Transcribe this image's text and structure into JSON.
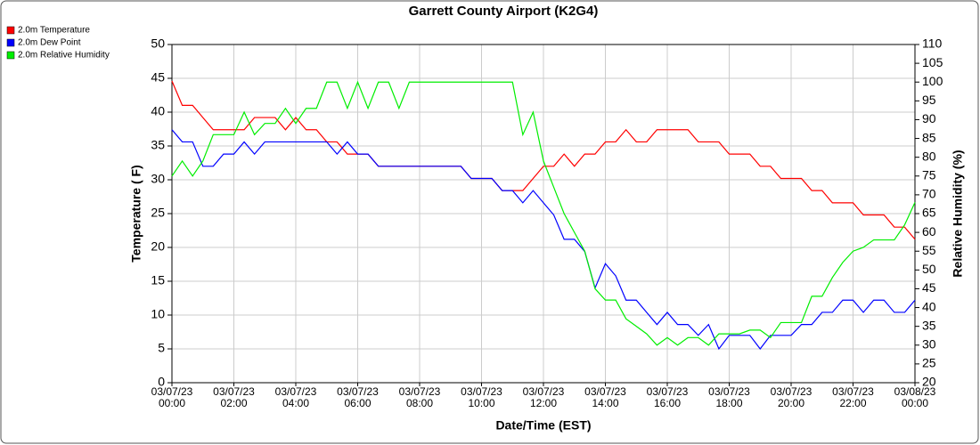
{
  "chart_data": {
    "type": "line",
    "title": "Garrett County Airport (K2G4)",
    "xlabel": "Date/Time (EST)",
    "ylabel": "Temperature ( F)",
    "y2label": "Relative Humidity (%)",
    "x": [
      "2023-03-07T00:00",
      "2023-03-07T00:20",
      "2023-03-07T00:40",
      "2023-03-07T01:00",
      "2023-03-07T01:20",
      "2023-03-07T01:40",
      "2023-03-07T02:00",
      "2023-03-07T02:20",
      "2023-03-07T02:40",
      "2023-03-07T03:00",
      "2023-03-07T03:20",
      "2023-03-07T03:40",
      "2023-03-07T04:00",
      "2023-03-07T04:20",
      "2023-03-07T04:40",
      "2023-03-07T05:00",
      "2023-03-07T05:20",
      "2023-03-07T05:40",
      "2023-03-07T06:00",
      "2023-03-07T06:20",
      "2023-03-07T06:40",
      "2023-03-07T07:00",
      "2023-03-07T07:20",
      "2023-03-07T07:40",
      "2023-03-07T08:00",
      "2023-03-07T08:20",
      "2023-03-07T08:40",
      "2023-03-07T09:00",
      "2023-03-07T09:20",
      "2023-03-07T09:40",
      "2023-03-07T10:00",
      "2023-03-07T10:20",
      "2023-03-07T10:40",
      "2023-03-07T11:00",
      "2023-03-07T11:20",
      "2023-03-07T11:40",
      "2023-03-07T12:00",
      "2023-03-07T12:20",
      "2023-03-07T12:40",
      "2023-03-07T13:00",
      "2023-03-07T13:20",
      "2023-03-07T13:40",
      "2023-03-07T14:00",
      "2023-03-07T14:20",
      "2023-03-07T14:40",
      "2023-03-07T15:00",
      "2023-03-07T15:20",
      "2023-03-07T15:40",
      "2023-03-07T16:00",
      "2023-03-07T16:20",
      "2023-03-07T16:40",
      "2023-03-07T17:00",
      "2023-03-07T17:20",
      "2023-03-07T17:40",
      "2023-03-07T18:00",
      "2023-03-07T18:20",
      "2023-03-07T18:40",
      "2023-03-07T19:00",
      "2023-03-07T19:20",
      "2023-03-07T19:40",
      "2023-03-07T20:00",
      "2023-03-07T20:20",
      "2023-03-07T20:40",
      "2023-03-07T21:00",
      "2023-03-07T21:20",
      "2023-03-07T21:40",
      "2023-03-07T22:00",
      "2023-03-07T22:20",
      "2023-03-07T22:40",
      "2023-03-07T23:00",
      "2023-03-07T23:20",
      "2023-03-07T23:40",
      "2023-03-08T00:00"
    ],
    "series": [
      {
        "name": "2.0m Temperature",
        "color": "#ff0000",
        "values": [
          44.6,
          41,
          41,
          39.2,
          37.4,
          37.4,
          37.4,
          37.4,
          39.2,
          39.2,
          39.2,
          37.4,
          39.2,
          37.4,
          37.4,
          35.6,
          35.6,
          33.8,
          33.8,
          33.8,
          32,
          32,
          32,
          32,
          32,
          32,
          32,
          32,
          32,
          30.2,
          30.2,
          30.2,
          28.4,
          28.4,
          28.4,
          30.2,
          32,
          32,
          33.8,
          32,
          33.8,
          33.8,
          35.6,
          35.6,
          37.4,
          35.6,
          35.6,
          37.4,
          37.4,
          37.4,
          37.4,
          35.6,
          35.6,
          35.6,
          33.8,
          33.8,
          33.8,
          32,
          32,
          30.2,
          30.2,
          30.2,
          28.4,
          28.4,
          26.6,
          26.6,
          26.6,
          24.8,
          24.8,
          24.8,
          23,
          23,
          21.2
        ]
      },
      {
        "name": "2.0m Dew Point",
        "color": "#0000ff",
        "values": [
          37.4,
          35.6,
          35.6,
          32,
          32,
          33.8,
          33.8,
          35.6,
          33.8,
          35.6,
          35.6,
          35.6,
          35.6,
          35.6,
          35.6,
          35.6,
          33.8,
          35.6,
          33.8,
          33.8,
          32,
          32,
          32,
          32,
          32,
          32,
          32,
          32,
          32,
          30.2,
          30.2,
          30.2,
          28.4,
          28.4,
          26.6,
          28.4,
          26.6,
          24.8,
          21.2,
          21.2,
          19.4,
          14,
          17.6,
          15.8,
          12.2,
          12.2,
          10.4,
          8.6,
          10.4,
          8.6,
          8.6,
          7,
          8.6,
          5,
          7,
          7,
          7,
          5,
          7,
          7,
          7,
          8.6,
          8.6,
          10.4,
          10.4,
          12.2,
          12.2,
          10.4,
          12.2,
          12.2,
          10.4,
          10.4,
          12.2
        ]
      },
      {
        "name": "2.0m Relative Humidity",
        "color": "#00ee00",
        "axis": "y2",
        "values": [
          75,
          79,
          75,
          79,
          86,
          86,
          86,
          92,
          86,
          89,
          89,
          93,
          89,
          93,
          93,
          100,
          100,
          93,
          100,
          93,
          100,
          100,
          93,
          100,
          100,
          100,
          100,
          100,
          100,
          100,
          100,
          100,
          100,
          100,
          86,
          92,
          79,
          72,
          65,
          60,
          55,
          45,
          42,
          42,
          37,
          35,
          33,
          30,
          32,
          30,
          32,
          32,
          30,
          33,
          33,
          33,
          34,
          34,
          32,
          36,
          36,
          36,
          43,
          43,
          48,
          52,
          55,
          56,
          58,
          58,
          58,
          62,
          68
        ]
      }
    ],
    "xlim": [
      "2023-03-07T00:00",
      "2023-03-08T00:00"
    ],
    "xticks": [
      {
        "value": "2023-03-07T00:00",
        "label": "03/07/23\n00:00"
      },
      {
        "value": "2023-03-07T02:00",
        "label": "03/07/23\n02:00"
      },
      {
        "value": "2023-03-07T04:00",
        "label": "03/07/23\n04:00"
      },
      {
        "value": "2023-03-07T06:00",
        "label": "03/07/23\n06:00"
      },
      {
        "value": "2023-03-07T08:00",
        "label": "03/07/23\n08:00"
      },
      {
        "value": "2023-03-07T10:00",
        "label": "03/07/23\n10:00"
      },
      {
        "value": "2023-03-07T12:00",
        "label": "03/07/23\n12:00"
      },
      {
        "value": "2023-03-07T14:00",
        "label": "03/07/23\n14:00"
      },
      {
        "value": "2023-03-07T16:00",
        "label": "03/07/23\n16:00"
      },
      {
        "value": "2023-03-07T18:00",
        "label": "03/07/23\n18:00"
      },
      {
        "value": "2023-03-07T20:00",
        "label": "03/07/23\n20:00"
      },
      {
        "value": "2023-03-07T22:00",
        "label": "03/07/23\n22:00"
      },
      {
        "value": "2023-03-08T00:00",
        "label": "03/08/23\n00:00"
      }
    ],
    "ylim": [
      0,
      50
    ],
    "yticks": [
      0,
      5,
      10,
      15,
      20,
      25,
      30,
      35,
      40,
      45,
      50
    ],
    "y2lim": [
      20,
      110
    ],
    "y2ticks": [
      20,
      25,
      30,
      35,
      40,
      45,
      50,
      55,
      60,
      65,
      70,
      75,
      80,
      85,
      90,
      95,
      100,
      105,
      110
    ],
    "grid": true,
    "legend": "top-left"
  }
}
